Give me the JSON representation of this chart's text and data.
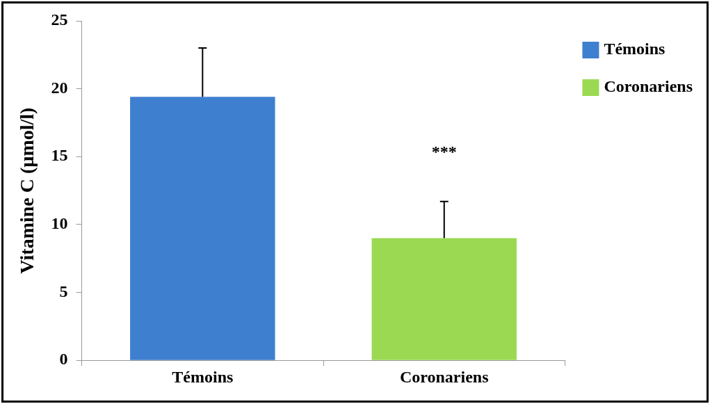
{
  "chart_data": {
    "type": "bar",
    "ylabel": "Vitamine C (µmol/l)",
    "categories": [
      "Témoins",
      "Coronariens"
    ],
    "series": [
      {
        "name": "Témoins",
        "color": "#3f7fcf",
        "values": [
          19.4,
          null
        ],
        "errors": [
          3.6,
          null
        ]
      },
      {
        "name": "Coronariens",
        "color": "#9bd953",
        "values": [
          null,
          9.0
        ],
        "errors": [
          null,
          2.7
        ]
      }
    ],
    "ylim": [
      0,
      25
    ],
    "yticks": [
      0,
      5,
      10,
      15,
      20,
      25
    ],
    "grid": false,
    "legend": "right",
    "annotations": [
      "***"
    ]
  }
}
